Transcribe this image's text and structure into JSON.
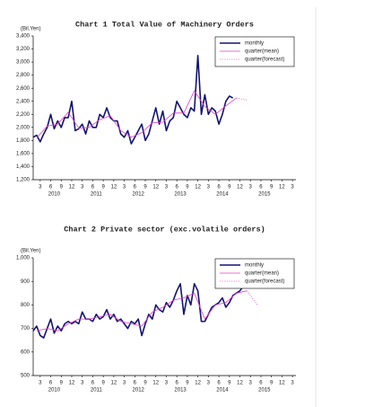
{
  "chart_data": [
    {
      "type": "line",
      "title": "Chart 1 Total Value of Machinery Orders",
      "y_label": "(Bil.Yen)",
      "legend": "upper right",
      "xlim": [
        2010,
        2016.25
      ],
      "ylim": [
        1200,
        3400
      ],
      "yticks": [
        {
          "value": 1200,
          "label": "1,200"
        },
        {
          "value": 1400,
          "label": "1,400"
        },
        {
          "value": 1600,
          "label": "1,600"
        },
        {
          "value": 1800,
          "label": "1,800"
        },
        {
          "value": 2000,
          "label": "2,000"
        },
        {
          "value": 2200,
          "label": "2,200"
        },
        {
          "value": 2400,
          "label": "2,400"
        },
        {
          "value": 2600,
          "label": "2,600"
        },
        {
          "value": 2800,
          "label": "2,800"
        },
        {
          "value": 3000,
          "label": "3,000"
        },
        {
          "value": 3200,
          "label": "3,200"
        },
        {
          "value": 3400,
          "label": "3,400"
        }
      ],
      "xticks": [
        {
          "value": 2010.167,
          "label": "3"
        },
        {
          "value": 2010.417,
          "label": "6"
        },
        {
          "value": 2010.667,
          "label": "9"
        },
        {
          "value": 2010.917,
          "label": "12"
        },
        {
          "value": 2011.167,
          "label": "3"
        },
        {
          "value": 2011.417,
          "label": "6"
        },
        {
          "value": 2011.667,
          "label": "9"
        },
        {
          "value": 2011.917,
          "label": "12"
        },
        {
          "value": 2012.167,
          "label": "3"
        },
        {
          "value": 2012.417,
          "label": "6"
        },
        {
          "value": 2012.667,
          "label": "9"
        },
        {
          "value": 2012.917,
          "label": "12"
        },
        {
          "value": 2013.167,
          "label": "3"
        },
        {
          "value": 2013.417,
          "label": "6"
        },
        {
          "value": 2013.667,
          "label": "9"
        },
        {
          "value": 2013.917,
          "label": "12"
        },
        {
          "value": 2014.167,
          "label": "3"
        },
        {
          "value": 2014.417,
          "label": "6"
        },
        {
          "value": 2014.667,
          "label": "9"
        },
        {
          "value": 2014.917,
          "label": "12"
        },
        {
          "value": 2015.167,
          "label": "3"
        },
        {
          "value": 2015.417,
          "label": "6"
        },
        {
          "value": 2015.667,
          "label": "9"
        },
        {
          "value": 2015.917,
          "label": "12"
        },
        {
          "value": 2016.167,
          "label": "3"
        }
      ],
      "year_ticks": [
        {
          "value": 2010.5,
          "label": "2010"
        },
        {
          "value": 2011.5,
          "label": "2011"
        },
        {
          "value": 2012.5,
          "label": "2012"
        },
        {
          "value": 2013.5,
          "label": "2013"
        },
        {
          "value": 2014.5,
          "label": "2014"
        },
        {
          "value": 2015.5,
          "label": "2015"
        }
      ],
      "x": [
        2010,
        2010.083,
        2010.167,
        2010.25,
        2010.333,
        2010.417,
        2010.5,
        2010.583,
        2010.667,
        2010.75,
        2010.833,
        2010.917,
        2011,
        2011.083,
        2011.167,
        2011.25,
        2011.333,
        2011.417,
        2011.5,
        2011.583,
        2011.667,
        2011.75,
        2011.833,
        2011.917,
        2012,
        2012.083,
        2012.167,
        2012.25,
        2012.333,
        2012.417,
        2012.5,
        2012.583,
        2012.667,
        2012.75,
        2012.833,
        2012.917,
        2013,
        2013.083,
        2013.167,
        2013.25,
        2013.333,
        2013.417,
        2013.5,
        2013.583,
        2013.667,
        2013.75,
        2013.833,
        2013.917,
        2014,
        2014.083,
        2014.167,
        2014.25,
        2014.333,
        2014.417,
        2014.5,
        2014.583,
        2014.667,
        2014.75
      ],
      "series": [
        {
          "name": "monthly",
          "color": "#141470",
          "width": 1.6,
          "dash": "solid",
          "values": [
            1850,
            1880,
            1780,
            1900,
            2000,
            2200,
            1980,
            2100,
            2000,
            2150,
            2150,
            2400,
            1950,
            1980,
            2050,
            1900,
            2100,
            2000,
            2000,
            2200,
            2150,
            2300,
            2150,
            2100,
            2100,
            1900,
            1850,
            1950,
            1750,
            1850,
            1950,
            2050,
            1800,
            1900,
            2100,
            2300,
            2050,
            2250,
            1950,
            2100,
            2150,
            2400,
            2300,
            2200,
            2150,
            2300,
            2250,
            3100,
            2200,
            2500,
            2200,
            2300,
            2250,
            2050,
            2200,
            2400,
            2480,
            2450
          ]
        },
        {
          "name": "quarter(mean)",
          "color": "#e040c8",
          "width": 0.8,
          "dash": "solid",
          "x": [
            2010.083,
            2010.333,
            2010.583,
            2010.833,
            2011.083,
            2011.333,
            2011.583,
            2011.833,
            2012.083,
            2012.333,
            2012.583,
            2012.833,
            2013.083,
            2013.333,
            2013.583,
            2013.833,
            2014.083,
            2014.333,
            2014.583,
            2014.833
          ],
          "values": [
            1840,
            2020,
            2050,
            2230,
            1990,
            2000,
            2120,
            2180,
            1950,
            1850,
            1920,
            2070,
            2080,
            2220,
            2220,
            2560,
            2320,
            2200,
            2330,
            2450
          ]
        },
        {
          "name": "quarter(forecast)",
          "color": "#e060c8",
          "width": 0.8,
          "dash": "dotted",
          "x": [
            2014.833,
            2015.083
          ],
          "values": [
            2450,
            2420
          ]
        }
      ]
    },
    {
      "type": "line",
      "title": "Chart 2 Private sector (exc.volatile orders)",
      "y_label": "(Bil.Yen)",
      "legend": "upper right",
      "xlim": [
        2010,
        2016.25
      ],
      "ylim": [
        500,
        1000
      ],
      "yticks": [
        500,
        600,
        700,
        800,
        900,
        {
          "value": 1000,
          "label": "1,000"
        }
      ],
      "xticks": [
        {
          "value": 2010.167,
          "label": "3"
        },
        {
          "value": 2010.417,
          "label": "6"
        },
        {
          "value": 2010.667,
          "label": "9"
        },
        {
          "value": 2010.917,
          "label": "12"
        },
        {
          "value": 2011.167,
          "label": "3"
        },
        {
          "value": 2011.417,
          "label": "6"
        },
        {
          "value": 2011.667,
          "label": "9"
        },
        {
          "value": 2011.917,
          "label": "12"
        },
        {
          "value": 2012.167,
          "label": "3"
        },
        {
          "value": 2012.417,
          "label": "6"
        },
        {
          "value": 2012.667,
          "label": "9"
        },
        {
          "value": 2012.917,
          "label": "12"
        },
        {
          "value": 2013.167,
          "label": "3"
        },
        {
          "value": 2013.417,
          "label": "6"
        },
        {
          "value": 2013.667,
          "label": "9"
        },
        {
          "value": 2013.917,
          "label": "12"
        },
        {
          "value": 2014.167,
          "label": "3"
        },
        {
          "value": 2014.417,
          "label": "6"
        },
        {
          "value": 2014.667,
          "label": "9"
        },
        {
          "value": 2014.917,
          "label": "12"
        },
        {
          "value": 2015.167,
          "label": "3"
        },
        {
          "value": 2015.417,
          "label": "6"
        },
        {
          "value": 2015.667,
          "label": "9"
        },
        {
          "value": 2015.917,
          "label": "12"
        },
        {
          "value": 2016.167,
          "label": "3"
        }
      ],
      "year_ticks": [
        {
          "value": 2010.5,
          "label": "2010"
        },
        {
          "value": 2011.5,
          "label": "2011"
        },
        {
          "value": 2012.5,
          "label": "2012"
        },
        {
          "value": 2013.5,
          "label": "2013"
        },
        {
          "value": 2014.5,
          "label": "2014"
        },
        {
          "value": 2015.5,
          "label": "2015"
        }
      ],
      "x": [
        2010,
        2010.083,
        2010.167,
        2010.25,
        2010.333,
        2010.417,
        2010.5,
        2010.583,
        2010.667,
        2010.75,
        2010.833,
        2010.917,
        2011,
        2011.083,
        2011.167,
        2011.25,
        2011.333,
        2011.417,
        2011.5,
        2011.583,
        2011.667,
        2011.75,
        2011.833,
        2011.917,
        2012,
        2012.083,
        2012.167,
        2012.25,
        2012.333,
        2012.417,
        2012.5,
        2012.583,
        2012.667,
        2012.75,
        2012.833,
        2012.917,
        2013,
        2013.083,
        2013.167,
        2013.25,
        2013.333,
        2013.417,
        2013.5,
        2013.583,
        2013.667,
        2013.75,
        2013.833,
        2013.917,
        2014,
        2014.083,
        2014.167,
        2014.25,
        2014.333,
        2014.417,
        2014.5,
        2014.583,
        2014.667,
        2014.75,
        2014.833,
        2014.917,
        2015,
        2015.083
      ],
      "series": [
        {
          "name": "monthly",
          "color": "#141470",
          "width": 1.6,
          "dash": "solid",
          "values": [
            690,
            710,
            670,
            660,
            700,
            740,
            680,
            710,
            690,
            720,
            730,
            720,
            730,
            720,
            770,
            740,
            740,
            730,
            760,
            740,
            750,
            780,
            740,
            760,
            730,
            740,
            720,
            700,
            730,
            720,
            740,
            670,
            720,
            760,
            740,
            800,
            780,
            770,
            810,
            790,
            820,
            860,
            890,
            760,
            840,
            800,
            890,
            860,
            730,
            730,
            760,
            790,
            800,
            810,
            830,
            790,
            810,
            840,
            850,
            860,
            880,
            900
          ]
        },
        {
          "name": "quarter(mean)",
          "color": "#e040c8",
          "width": 0.8,
          "dash": "solid",
          "x": [
            2010.083,
            2010.333,
            2010.583,
            2010.833,
            2011.083,
            2011.333,
            2011.583,
            2011.833,
            2012.083,
            2012.333,
            2012.583,
            2012.833,
            2013.083,
            2013.333,
            2013.583,
            2013.833,
            2014.083,
            2014.333,
            2014.583,
            2014.833,
            2015.083
          ],
          "values": [
            690,
            700,
            690,
            720,
            740,
            740,
            750,
            760,
            730,
            720,
            710,
            770,
            790,
            820,
            830,
            850,
            740,
            800,
            810,
            850,
            860
          ]
        },
        {
          "name": "quarter(forecast)",
          "color": "#e060c8",
          "width": 0.8,
          "dash": "dotted",
          "x": [
            2015.083,
            2015.333
          ],
          "values": [
            860,
            800
          ]
        }
      ]
    }
  ]
}
